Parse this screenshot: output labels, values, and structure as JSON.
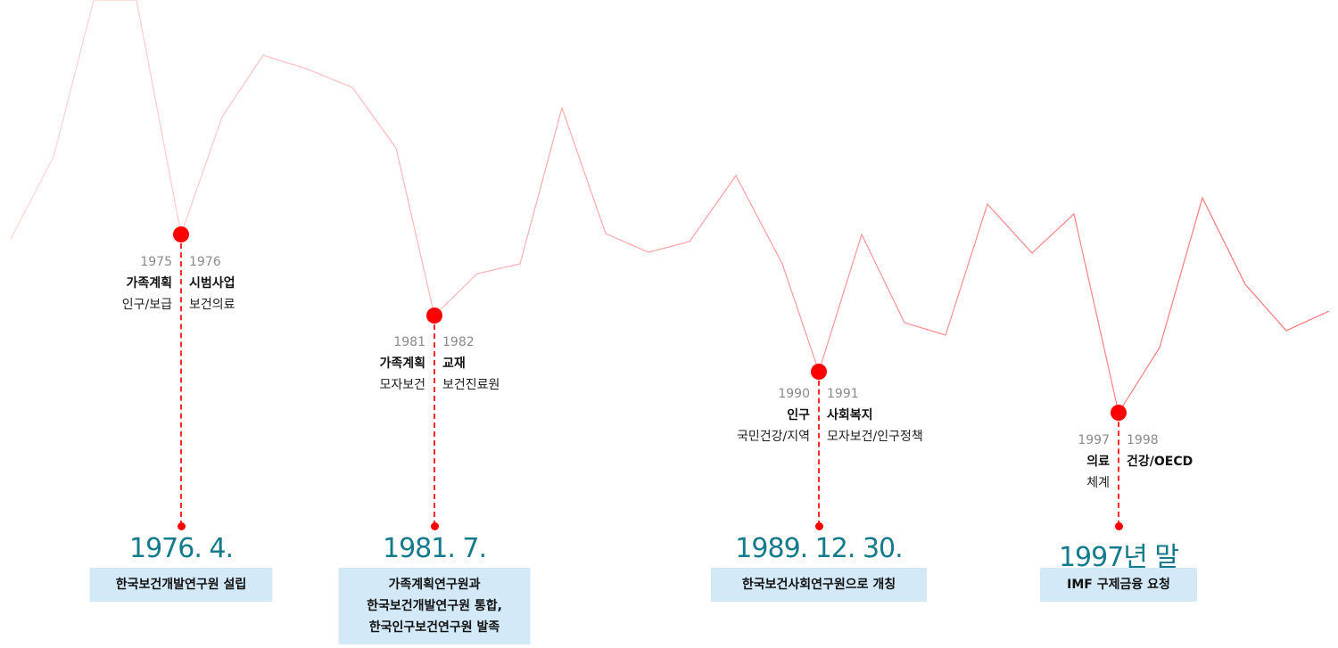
{
  "colors": {
    "accent": "#ff0000",
    "date": "#137b8c",
    "box": "#d3e9f8"
  },
  "events": [
    {
      "left": {
        "year": "1975",
        "title": "가족계획",
        "sub": "인구/보급"
      },
      "right": {
        "year": "1976",
        "title": "시범사업",
        "sub": "보건의료"
      },
      "date": "1976. 4.",
      "desc": [
        "한국보건개발연구원 설립"
      ]
    },
    {
      "left": {
        "year": "1981",
        "title": "가족계획",
        "sub": "모자보건"
      },
      "right": {
        "year": "1982",
        "title": "교재",
        "sub": "보건진료원"
      },
      "date": "1981. 7.",
      "desc": [
        "가족계획연구원과",
        "한국보건개발연구원 통합,",
        "한국인구보건연구원 발족"
      ]
    },
    {
      "left": {
        "year": "1990",
        "title": "인구",
        "sub": "국민건강/지역"
      },
      "right": {
        "year": "1991",
        "title": "사회복지",
        "sub": "모자보건/인구정책"
      },
      "date": "1989. 12. 30.",
      "desc": [
        "한국보건사회연구원으로 개칭"
      ]
    },
    {
      "left": {
        "year": "1997",
        "title": "의료",
        "sub": "체계"
      },
      "right": {
        "year": "1998",
        "title": "건강/OECD",
        "sub": ""
      },
      "date": "1997년 말",
      "desc": [
        "IMF 구제금융 요청"
      ]
    }
  ]
}
